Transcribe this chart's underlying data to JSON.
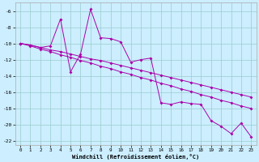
{
  "xlabel": "Windchill (Refroidissement éolien,°C)",
  "bg_color": "#cceeff",
  "grid_color": "#99cccc",
  "line_color": "#aa00aa",
  "xlim_min": -0.5,
  "xlim_max": 23.5,
  "ylim_min": -22.5,
  "ylim_max": -5.0,
  "xticks": [
    0,
    1,
    2,
    3,
    4,
    5,
    6,
    7,
    8,
    9,
    10,
    11,
    12,
    13,
    14,
    15,
    16,
    17,
    18,
    19,
    20,
    21,
    22,
    23
  ],
  "yticks": [
    -6,
    -8,
    -10,
    -12,
    -14,
    -16,
    -18,
    -20,
    -22
  ],
  "hours": [
    0,
    1,
    2,
    3,
    4,
    5,
    6,
    7,
    8,
    9,
    10,
    11,
    12,
    13,
    14,
    15,
    16,
    17,
    18,
    19,
    20,
    21,
    22,
    23
  ],
  "y_spiky": [
    -10.0,
    -10.2,
    -10.5,
    -10.3,
    -7.0,
    -13.5,
    -11.3,
    -5.8,
    -9.3,
    -9.4,
    -9.8,
    -12.3,
    -12.0,
    -11.8,
    -17.3,
    -17.5,
    -17.2,
    -17.4,
    -17.5,
    -19.5,
    -20.2,
    -21.1,
    -19.8,
    -21.5
  ],
  "y_lin1": [
    -10.0,
    -10.2,
    -10.5,
    -10.8,
    -11.0,
    -11.3,
    -11.6,
    -11.9,
    -12.1,
    -12.4,
    -12.7,
    -13.0,
    -13.3,
    -13.6,
    -13.9,
    -14.2,
    -14.5,
    -14.8,
    -15.1,
    -15.4,
    -15.7,
    -16.0,
    -16.3,
    -16.6
  ],
  "y_lin2": [
    -10.0,
    -10.3,
    -10.7,
    -11.0,
    -11.4,
    -11.7,
    -12.1,
    -12.4,
    -12.8,
    -13.1,
    -13.5,
    -13.8,
    -14.2,
    -14.5,
    -14.9,
    -15.2,
    -15.6,
    -15.9,
    -16.3,
    -16.6,
    -17.0,
    -17.3,
    -17.7,
    -18.0
  ]
}
